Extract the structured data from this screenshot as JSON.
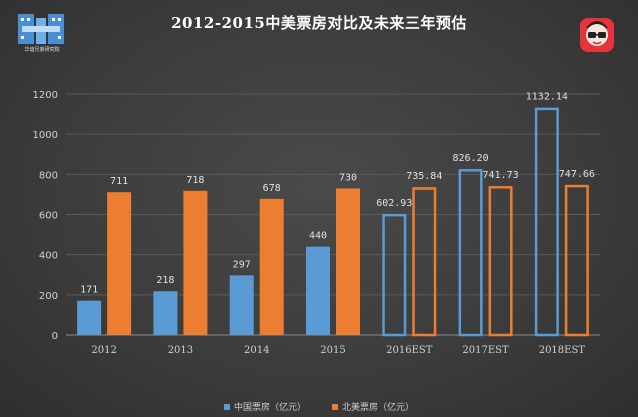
{
  "title": "2012-2015中美票房对比及未来三年预估",
  "logo_left": {
    "icon": "building-h-logo",
    "caption": "华谊兄弟研究院",
    "color": "#5a9bd8"
  },
  "logo_right": {
    "icon": "glasses-face-logo",
    "caption": "",
    "color": "#e8323c"
  },
  "colors": {
    "china": "#5b9bd5",
    "us": "#ed7d31",
    "axis_text": "#d0d0d0",
    "grid": "#5a5a5a",
    "label_text": "#e0e0e0"
  },
  "legend": {
    "china": "中国票房（亿元）",
    "us": "北美票房（亿元）"
  },
  "chart_data": {
    "type": "bar",
    "title": "2012-2015中美票房对比及未来三年预估",
    "categories": [
      "2012",
      "2013",
      "2014",
      "2015",
      "2016EST",
      "2017EST",
      "2018EST"
    ],
    "ylim": [
      0,
      1200
    ],
    "yticks": [
      0,
      200,
      400,
      600,
      800,
      1000,
      1200
    ],
    "grid": true,
    "legend_position": "bottom",
    "series": [
      {
        "name": "中国票房（亿元）",
        "values": [
          171,
          218,
          297,
          440,
          602.93,
          826.2,
          1132.14
        ],
        "labels": [
          "171",
          "218",
          "297",
          "440",
          "602.93",
          "826.20",
          "1132.14"
        ],
        "estimated": [
          false,
          false,
          false,
          false,
          true,
          true,
          true
        ]
      },
      {
        "name": "北美票房（亿元）",
        "values": [
          711,
          718,
          678,
          730,
          735.84,
          741.73,
          747.66
        ],
        "labels": [
          "711",
          "718",
          "678",
          "730",
          "735.84",
          "741.73",
          "747.66"
        ],
        "estimated": [
          false,
          false,
          false,
          false,
          true,
          true,
          true
        ]
      }
    ]
  }
}
